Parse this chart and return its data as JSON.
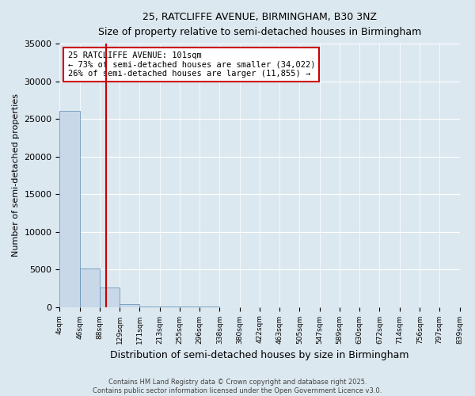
{
  "title1": "25, RATCLIFFE AVENUE, BIRMINGHAM, B30 3NZ",
  "title2": "Size of property relative to semi-detached houses in Birmingham",
  "xlabel": "Distribution of semi-detached houses by size in Birmingham",
  "ylabel": "Number of semi-detached properties",
  "annotation_line1": "25 RATCLIFFE AVENUE: 101sqm",
  "annotation_line2": "← 73% of semi-detached houses are smaller (34,022)",
  "annotation_line3": "26% of semi-detached houses are larger (11,855) →",
  "property_size": 101,
  "bin_edges": [
    4,
    46,
    88,
    129,
    171,
    213,
    255,
    296,
    338,
    380,
    422,
    463,
    505,
    547,
    589,
    630,
    672,
    714,
    756,
    797,
    839
  ],
  "bar_heights": [
    26100,
    5100,
    2600,
    400,
    100,
    50,
    20,
    10,
    5,
    3,
    2,
    1,
    1,
    1,
    0,
    0,
    0,
    0,
    0,
    0
  ],
  "bar_color": "#c8d8e8",
  "bar_edge_color": "#5a8ab0",
  "property_line_color": "#cc0000",
  "ylim": [
    0,
    35000
  ],
  "yticks": [
    0,
    5000,
    10000,
    15000,
    20000,
    25000,
    30000,
    35000
  ],
  "footer1": "Contains HM Land Registry data © Crown copyright and database right 2025.",
  "footer2": "Contains public sector information licensed under the Open Government Licence v3.0.",
  "background_color": "#dce8f0"
}
